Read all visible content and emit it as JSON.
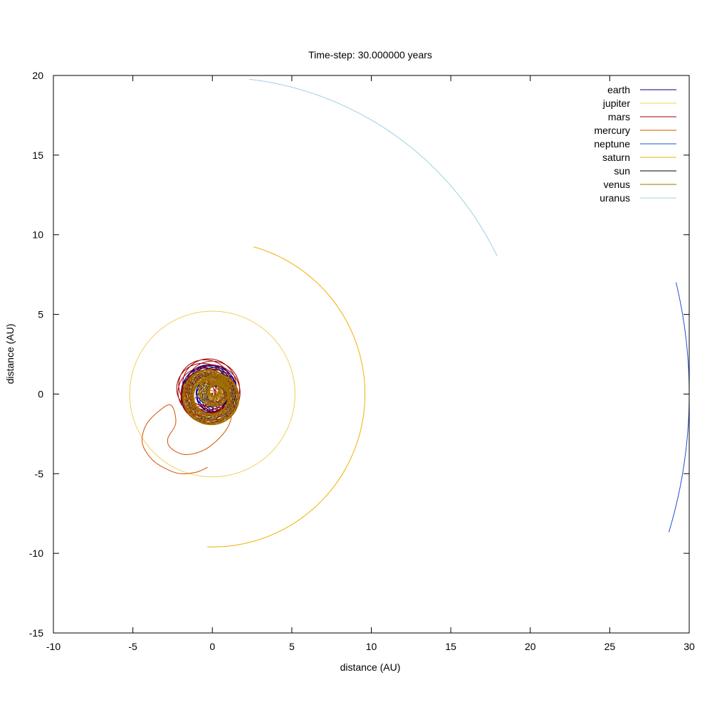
{
  "chart_data": {
    "type": "line",
    "title": "Time-step: 30.000000 years",
    "xlabel": "distance (AU)",
    "ylabel": "distance (AU)",
    "xlim": [
      -10,
      30
    ],
    "ylim": [
      -15,
      20
    ],
    "xticks": [
      -10,
      -5,
      0,
      5,
      10,
      15,
      20,
      25,
      30
    ],
    "yticks": [
      -15,
      -10,
      -5,
      0,
      5,
      10,
      15,
      20
    ],
    "xtick_labels": [
      "-10",
      "-5",
      "0",
      "5",
      "10",
      "15",
      "20",
      "25",
      "30"
    ],
    "ytick_labels": [
      "-15",
      "-10",
      "-5",
      "0",
      "5",
      "10",
      "15",
      "20"
    ],
    "grid": false,
    "legend_position": "top-right",
    "series": [
      {
        "name": "earth",
        "color": "#00008b",
        "kind": "precessing",
        "radius": 1.15,
        "wobble": 0.95,
        "nloops": 28,
        "phase": 0.0,
        "cx": 0.0,
        "cy": 0.0
      },
      {
        "name": "jupiter",
        "color": "#f0d060",
        "kind": "circle",
        "radius": 5.2,
        "cx": 0.0,
        "cy": 0.0,
        "start_angle_deg": -120,
        "sweep_deg": 360
      },
      {
        "name": "mars",
        "color": "#a00000",
        "kind": "precessing",
        "radius": 1.35,
        "wobble": 0.95,
        "nloops": 16,
        "phase": 1.3,
        "cx": -0.4,
        "cy": 0.1
      },
      {
        "name": "mercury",
        "color": "#d05000",
        "kind": "spiral",
        "points": [
          [
            -0.3,
            -4.6
          ],
          [
            -1.0,
            -4.9
          ],
          [
            -2.0,
            -5.0
          ],
          [
            -2.9,
            -4.7
          ],
          [
            -3.8,
            -4.1
          ],
          [
            -4.4,
            -3.1
          ],
          [
            -4.2,
            -2.0
          ],
          [
            -3.4,
            -1.1
          ],
          [
            -2.6,
            -0.7
          ],
          [
            -2.3,
            -1.8
          ],
          [
            -2.8,
            -2.8
          ],
          [
            -2.6,
            -3.4
          ],
          [
            -1.7,
            -3.8
          ],
          [
            -0.5,
            -3.5
          ],
          [
            0.5,
            -2.7
          ],
          [
            1.1,
            -1.8
          ],
          [
            1.2,
            -0.7
          ],
          [
            0.6,
            0.0
          ],
          [
            -0.4,
            0.2
          ],
          [
            -1.2,
            -0.4
          ],
          [
            -1.3,
            -1.3
          ],
          [
            -0.6,
            -1.7
          ],
          [
            0.3,
            -1.4
          ],
          [
            0.6,
            -0.6
          ],
          [
            0.3,
            0.0
          ],
          [
            -0.2,
            0.0
          ],
          [
            -0.2,
            -0.4
          ],
          [
            0.1,
            -0.6
          ],
          [
            0.3,
            -0.3
          ]
        ]
      },
      {
        "name": "neptune",
        "color": "#2050d0",
        "kind": "arc",
        "radius": 30.0,
        "cx": 0.0,
        "cy": 0.0,
        "start_angle_deg": 13.5,
        "sweep_deg": -30.3
      },
      {
        "name": "saturn",
        "color": "#f0b000",
        "kind": "arc",
        "radius": 9.6,
        "cx": 0.0,
        "cy": 0.0,
        "start_angle_deg": 74.3,
        "sweep_deg": -166.2
      },
      {
        "name": "sun",
        "color": "#000000",
        "kind": "dot",
        "x": 0.0,
        "y": 0.0
      },
      {
        "name": "venus",
        "color": "#a07000",
        "kind": "precessing",
        "radius": 1.0,
        "wobble": 1.2,
        "nloops": 40,
        "phase": 2.6,
        "cx": 0.0,
        "cy": 0.0
      },
      {
        "name": "uranus",
        "color": "#a0d0e0",
        "kind": "arc",
        "radius": 19.9,
        "cx": 0.0,
        "cy": 0.0,
        "start_angle_deg": 83.3,
        "sweep_deg": -57.5
      }
    ]
  }
}
